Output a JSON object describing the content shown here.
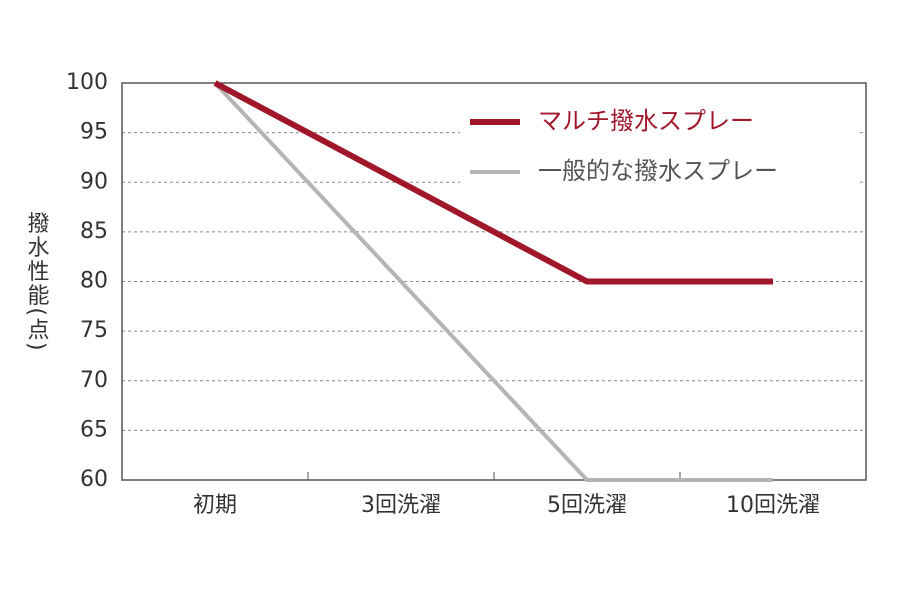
{
  "chart_data": {
    "type": "line",
    "y_label": "撥水性能(点)",
    "categories": [
      "初期",
      "3回洗濯",
      "5回洗濯",
      "10回洗濯"
    ],
    "series": [
      {
        "name": "マルチ撥水スプレー",
        "color": "#a0162a",
        "values": [
          100,
          90,
          80,
          80
        ]
      },
      {
        "name": "一般的な撥水スプレー",
        "color": "#b5b5b5",
        "values": [
          100,
          80,
          60,
          60
        ]
      }
    ],
    "ylim": [
      60,
      100
    ],
    "yticks": [
      60,
      65,
      70,
      75,
      80,
      85,
      90,
      95,
      100
    ],
    "grid": true
  }
}
